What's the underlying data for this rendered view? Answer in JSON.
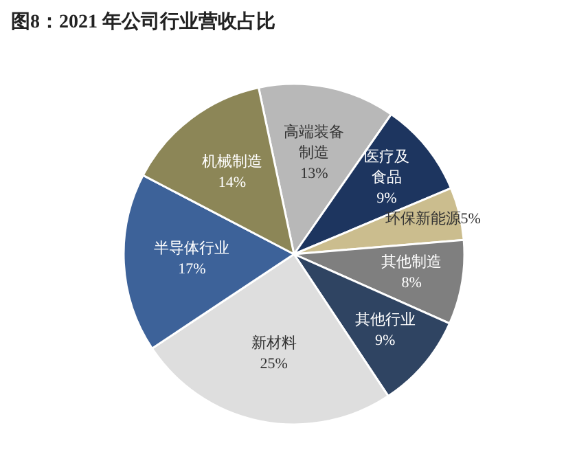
{
  "chart_data": {
    "type": "pie",
    "title": "图8：2021 年公司行业营收占比",
    "categories": [
      "高端装备制造",
      "医疗及食品",
      "环保新能源",
      "其他制造",
      "其他行业",
      "新材料",
      "半导体行业",
      "机械制造"
    ],
    "values": [
      13,
      9,
      5,
      8,
      9,
      25,
      17,
      14
    ],
    "value_labels": [
      "13%",
      "9%",
      "5%",
      "8%",
      "9%",
      "25%",
      "17%",
      "14%"
    ],
    "colors": [
      "#b8b8b8",
      "#1d355f",
      "#cbbd8e",
      "#7f7f7f",
      "#2f4462",
      "#dedede",
      "#3d6299",
      "#8c8657"
    ]
  }
}
